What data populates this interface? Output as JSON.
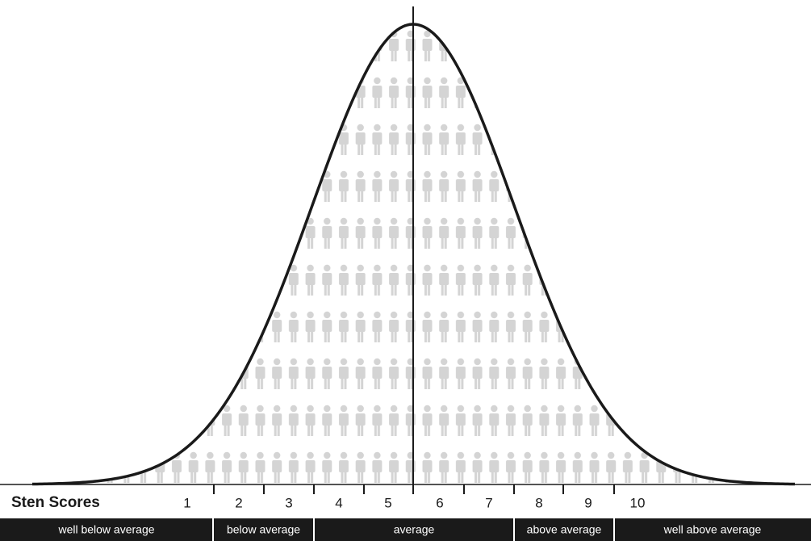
{
  "axis_label": "Sten Scores",
  "scores": [
    1,
    2,
    3,
    4,
    5,
    6,
    7,
    8,
    9,
    10
  ],
  "bands": [
    "well below average",
    "below average",
    "average",
    "above average",
    "well above average"
  ]
}
